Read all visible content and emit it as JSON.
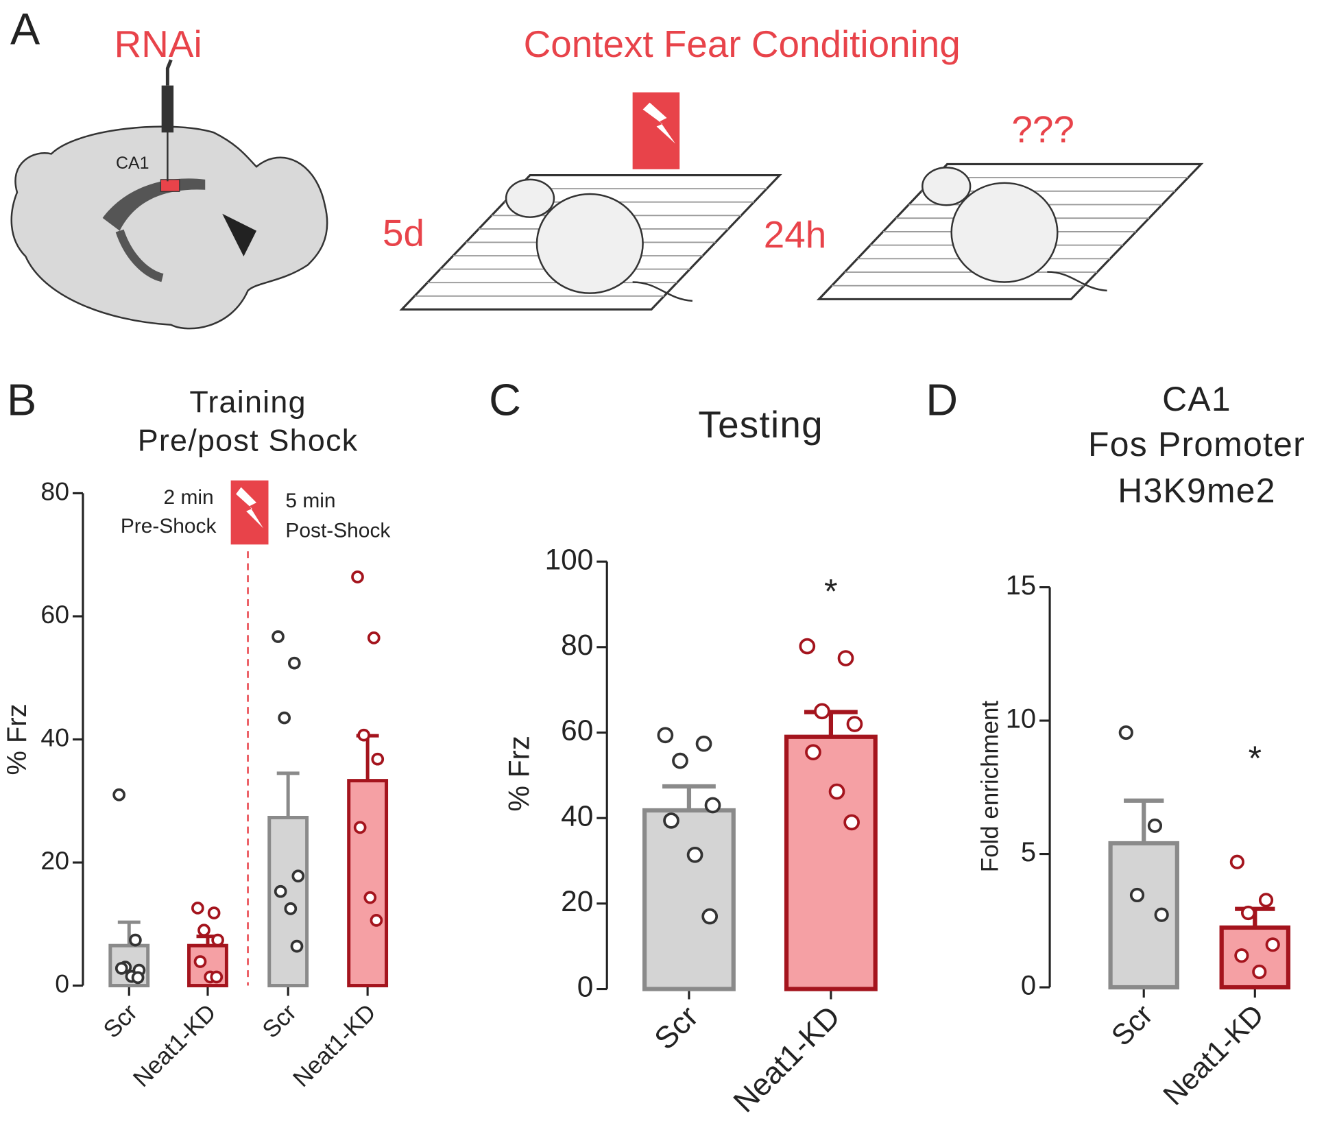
{
  "schematic": {
    "label": "A",
    "rnai": "RNAi",
    "region": "CA1",
    "title": "Context Fear Conditioning",
    "delay1": "5d",
    "delay2": "24h",
    "test": "???"
  },
  "chart_data": [
    {
      "type": "bar",
      "panel": "B",
      "title": [
        "Training",
        "Pre/post Shock"
      ],
      "ylabel": "% Frz",
      "categories": [
        "Scr",
        "Neat1-KD",
        "Scr",
        "Neat1-KD"
      ],
      "values": [
        6.5,
        6.5,
        27.3,
        33.3
      ],
      "errors": [
        3.8,
        1.5,
        7.2,
        7.3
      ],
      "colors": [
        "#d4d4d4",
        "#f5a0a4",
        "#d4d4d4",
        "#f5a0a4"
      ],
      "edge_colors": [
        "#8a8a8a",
        "#a4141d",
        "#8a8a8a",
        "#a4141d"
      ],
      "points": [
        [
          31,
          7.4,
          3,
          2.5,
          2.8,
          1.5,
          1.3
        ],
        [
          12.6,
          11.8,
          9,
          7.4,
          3.9,
          1.4,
          1.4
        ],
        [
          56.7,
          52.4,
          43.5,
          17.8,
          15.3,
          12.5,
          6.4
        ],
        [
          66.4,
          56.5,
          40.7,
          36.8,
          25.7,
          14.3,
          10.6
        ]
      ],
      "ylim": [
        0,
        80
      ],
      "yticks": [
        0,
        20,
        40,
        60,
        80
      ],
      "annotations": [
        "2 min",
        "Pre-Shock",
        "5 min",
        "Post-Shock"
      ]
    },
    {
      "type": "bar",
      "panel": "C",
      "title": [
        "Testing"
      ],
      "ylabel": "% Frz",
      "categories": [
        "Scr",
        "Neat1-KD"
      ],
      "values": [
        41.8,
        59
      ],
      "errors": [
        5.6,
        5.8
      ],
      "colors": [
        "#d4d4d4",
        "#f5a0a4"
      ],
      "edge_colors": [
        "#8a8a8a",
        "#a4141d"
      ],
      "points": [
        [
          59.4,
          57.4,
          53.4,
          43,
          39.4,
          31.4,
          17
        ],
        [
          80.2,
          77.4,
          65,
          62,
          55.4,
          46.2,
          39
        ]
      ],
      "ylim": [
        0,
        100
      ],
      "yticks": [
        0,
        20,
        40,
        60,
        80,
        100
      ],
      "annotations": [
        "*"
      ]
    },
    {
      "type": "bar",
      "panel": "D",
      "title": [
        "CA1",
        "Fos Promoter",
        "H3K9me2"
      ],
      "ylabel": "Fold enrichment",
      "categories": [
        "Scr",
        "Neat1-KD"
      ],
      "values": [
        5.4,
        2.24
      ],
      "errors": [
        1.6,
        0.7
      ],
      "colors": [
        "#d4d4d4",
        "#f5a0a4"
      ],
      "edge_colors": [
        "#8a8a8a",
        "#a4141d"
      ],
      "points": [
        [
          9.55,
          6.06,
          3.46,
          2.72
        ],
        [
          4.7,
          3.27,
          2.79,
          1.6,
          1.19,
          0.58
        ]
      ],
      "ylim": [
        0,
        15
      ],
      "yticks": [
        0,
        5,
        10,
        15
      ],
      "annotations": [
        "*"
      ]
    }
  ]
}
